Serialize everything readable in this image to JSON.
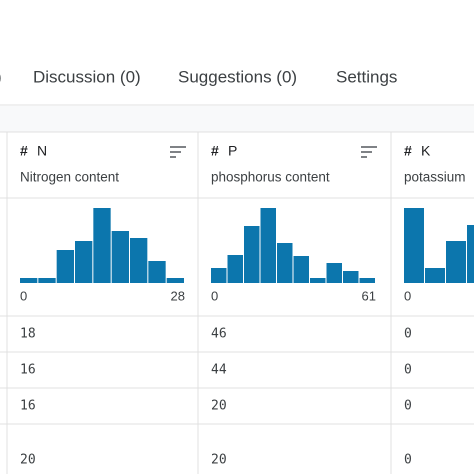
{
  "tabs": [
    ")",
    "Discussion (0)",
    "Suggestions (0)",
    "Settings"
  ],
  "columns": [
    {
      "type_icon": "#",
      "name": "N",
      "description": "Nitrogen content",
      "histogram": [
        5,
        5,
        33,
        42,
        75,
        52,
        45,
        22,
        5
      ],
      "min_label": "0",
      "max_label": "28",
      "cells": [
        18,
        16,
        16,
        20
      ]
    },
    {
      "type_icon": "#",
      "name": "P",
      "description": "phosphorus content",
      "histogram": [
        15,
        28,
        57,
        75,
        40,
        27,
        5,
        20,
        12,
        5
      ],
      "min_label": "0",
      "max_label": "61",
      "cells": [
        46,
        44,
        20,
        20
      ]
    },
    {
      "type_icon": "#",
      "name": "K",
      "description": "potassium",
      "histogram": [
        75,
        15,
        42,
        58
      ],
      "min_label": "0",
      "cells": [
        0,
        0,
        0,
        0
      ]
    }
  ]
}
